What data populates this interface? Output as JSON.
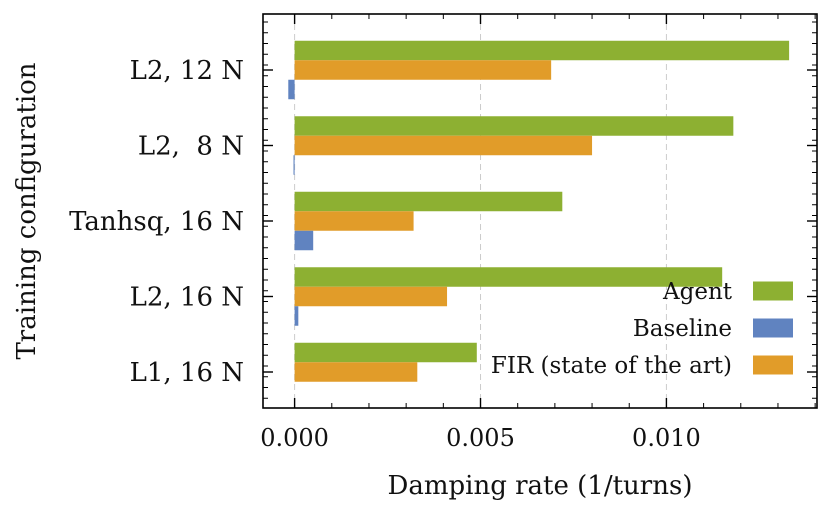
{
  "chart_data": {
    "type": "bar",
    "orientation": "horizontal",
    "title": "",
    "xlabel": "Damping rate (1/turns)",
    "ylabel": "Training configuration",
    "xlim": [
      -0.00085,
      0.01405
    ],
    "x_ticks": [
      0.0,
      0.005,
      0.01
    ],
    "x_tick_labels": [
      "0.000",
      "0.005",
      "0.010"
    ],
    "grid": "vertical-dashed",
    "legend_position": "bottom-right",
    "categories": [
      "L2, 12 N",
      "L2,  8 N",
      "Tanhsq, 16 N",
      "L2, 16 N",
      "L1, 16 N"
    ],
    "series": [
      {
        "name": "Agent",
        "color": "#8db032",
        "values": [
          0.0133,
          0.0118,
          0.0072,
          0.0115,
          0.0049
        ]
      },
      {
        "name": "FIR (state of the art)",
        "color": "#e19c29",
        "values": [
          0.0069,
          0.008,
          0.0032,
          0.0041,
          0.0033
        ]
      },
      {
        "name": "Baseline",
        "color": "#6083c0",
        "values": [
          -0.00017,
          -3e-05,
          0.0005,
          0.0001,
          0.0
        ]
      }
    ],
    "legend_order": [
      "Agent",
      "Baseline",
      "FIR (state of the art)"
    ]
  }
}
